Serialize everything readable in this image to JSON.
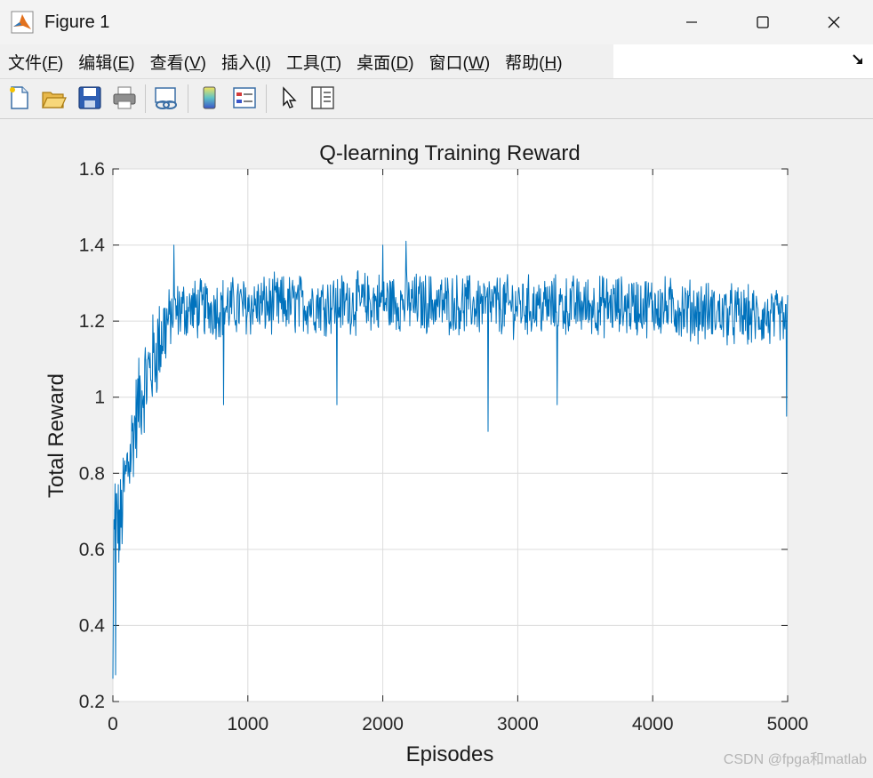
{
  "window": {
    "title": "Figure 1",
    "controls": {
      "minimize": "—",
      "maximize": "☐",
      "close": "✕"
    }
  },
  "menubar": {
    "items": [
      {
        "label": "文件(",
        "key": "F",
        "end": ")"
      },
      {
        "label": "编辑(",
        "key": "E",
        "end": ")"
      },
      {
        "label": "查看(",
        "key": "V",
        "end": ")"
      },
      {
        "label": "插入(",
        "key": "I",
        "end": ")"
      },
      {
        "label": "工具(",
        "key": "T",
        "end": ")"
      },
      {
        "label": "桌面(",
        "key": "D",
        "end": ")"
      },
      {
        "label": "窗口(",
        "key": "W",
        "end": ")"
      },
      {
        "label": "帮助(",
        "key": "H",
        "end": ")"
      }
    ],
    "dock_icon": "dock-arrow-icon"
  },
  "toolbar": {
    "buttons": [
      "new-figure-icon",
      "open-file-icon",
      "save-icon",
      "print-icon",
      "link-plot-icon",
      "colorbar-icon",
      "legend-icon",
      "edit-plot-arrow-icon",
      "property-inspector-icon"
    ]
  },
  "chart_data": {
    "type": "line",
    "title": "Q-learning Training Reward",
    "xlabel": "Episodes",
    "ylabel": "Total Reward",
    "xlim": [
      0,
      5000
    ],
    "ylim": [
      0.2,
      1.6
    ],
    "xticks": [
      "0",
      "1000",
      "2000",
      "3000",
      "4000",
      "5000"
    ],
    "yticks": [
      "0.2",
      "0.4",
      "0.6",
      "0.8",
      "1",
      "1.2",
      "1.4",
      "1.6"
    ],
    "grid": true,
    "color": "#0072BD",
    "n_points": 5000,
    "trend_description_keypoints": [
      {
        "x": 0,
        "y": 0.26
      },
      {
        "x": 10,
        "y": 0.72
      },
      {
        "x": 50,
        "y": 0.65
      },
      {
        "x": 100,
        "y": 0.8
      },
      {
        "x": 150,
        "y": 0.9
      },
      {
        "x": 200,
        "y": 1.0
      },
      {
        "x": 300,
        "y": 1.1
      },
      {
        "x": 400,
        "y": 1.2
      },
      {
        "x": 500,
        "y": 1.23
      },
      {
        "x": 1000,
        "y": 1.24
      },
      {
        "x": 2000,
        "y": 1.25
      },
      {
        "x": 3000,
        "y": 1.24
      },
      {
        "x": 4000,
        "y": 1.24
      },
      {
        "x": 5000,
        "y": 1.2
      }
    ],
    "notable_values": [
      {
        "x": 20,
        "y": 0.27
      },
      {
        "x": 450,
        "y": 1.4
      },
      {
        "x": 820,
        "y": 0.98
      },
      {
        "x": 1660,
        "y": 0.98
      },
      {
        "x": 2000,
        "y": 1.4
      },
      {
        "x": 2170,
        "y": 1.41
      },
      {
        "x": 2780,
        "y": 0.91
      },
      {
        "x": 3290,
        "y": 0.98
      },
      {
        "x": 4990,
        "y": 0.95
      }
    ]
  },
  "watermark": "CSDN @fpga和matlab"
}
